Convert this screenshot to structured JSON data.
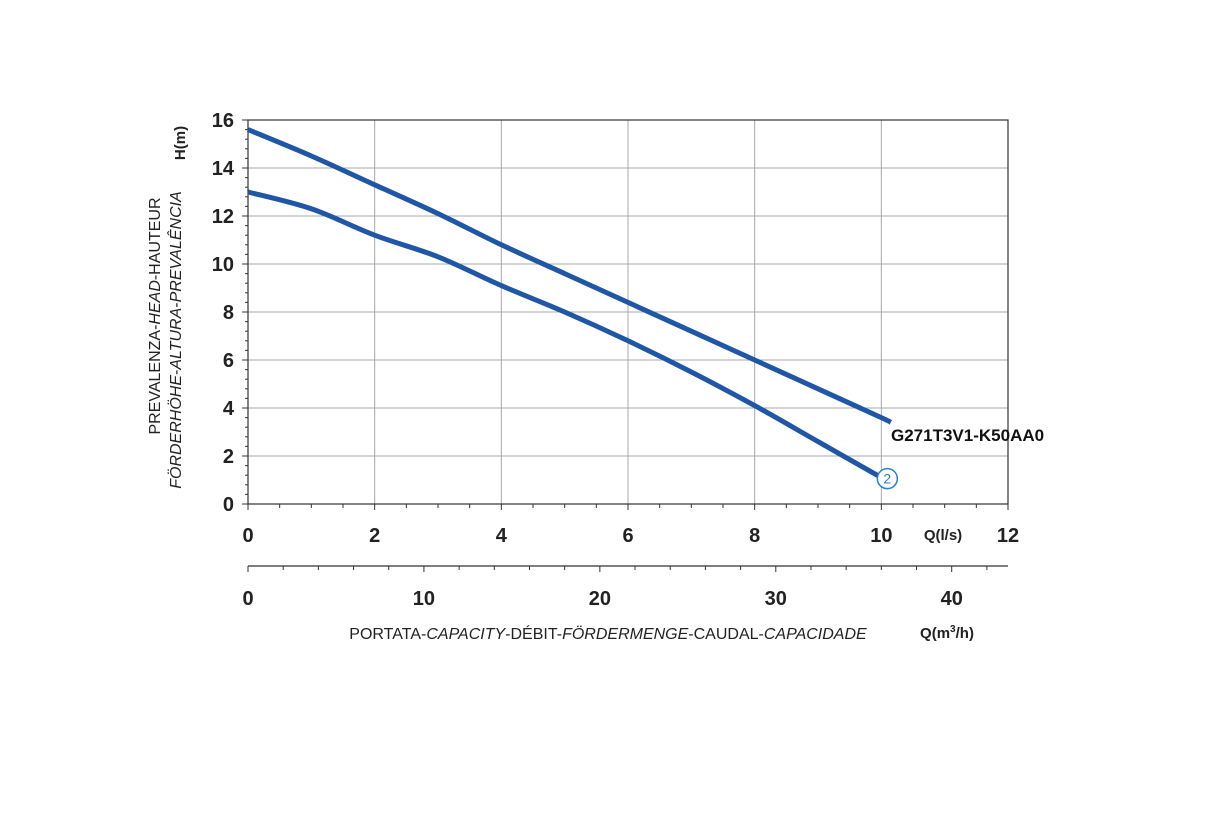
{
  "chart_data": {
    "type": "line",
    "ylabel_lines": [
      [
        "PREVALENZA-",
        "HEAD",
        "-HAUTEUR"
      ],
      [
        "FÖRDERHÖHE",
        "-",
        "ALTURA",
        "-",
        "PREVALÊNCIA"
      ]
    ],
    "yunit": "H(m)",
    "xunit_ls": "Q(l/s)",
    "xunit_m3h": "Q(m",
    "xunit_m3h_sup": "3",
    "xunit_m3h_end": "/h)",
    "xlabel_parts": [
      "PORTATA-",
      "CAPACITY",
      "-DÉBIT-",
      "FÖRDERMENGE",
      "-CAUDAL-",
      "CAPACIDADE"
    ],
    "ylim": [
      0,
      16
    ],
    "xlim_ls": [
      0,
      12
    ],
    "y_ticks": [
      0,
      2,
      4,
      6,
      8,
      10,
      12,
      14,
      16
    ],
    "x_ticks_ls": [
      0,
      2,
      4,
      6,
      8,
      10,
      12
    ],
    "x_ticks_m3h": [
      0,
      10,
      20,
      30,
      40
    ],
    "grid": true,
    "line_color": "#1f56a6",
    "series": [
      {
        "name": "G271T3V1-K50AA0",
        "x": [
          0,
          1,
          2,
          3,
          4,
          5,
          6,
          7,
          8,
          9,
          10,
          10.15
        ],
        "y": [
          15.6,
          14.5,
          13.3,
          12.1,
          10.8,
          9.6,
          8.4,
          7.2,
          6.0,
          4.8,
          3.6,
          3.4
        ]
      },
      {
        "name": "2",
        "x": [
          0,
          1,
          2,
          3,
          4,
          5,
          6,
          7,
          8,
          9,
          10
        ],
        "y": [
          13.0,
          12.3,
          11.2,
          10.3,
          9.1,
          8.0,
          6.8,
          5.5,
          4.1,
          2.6,
          1.1
        ]
      }
    ]
  }
}
